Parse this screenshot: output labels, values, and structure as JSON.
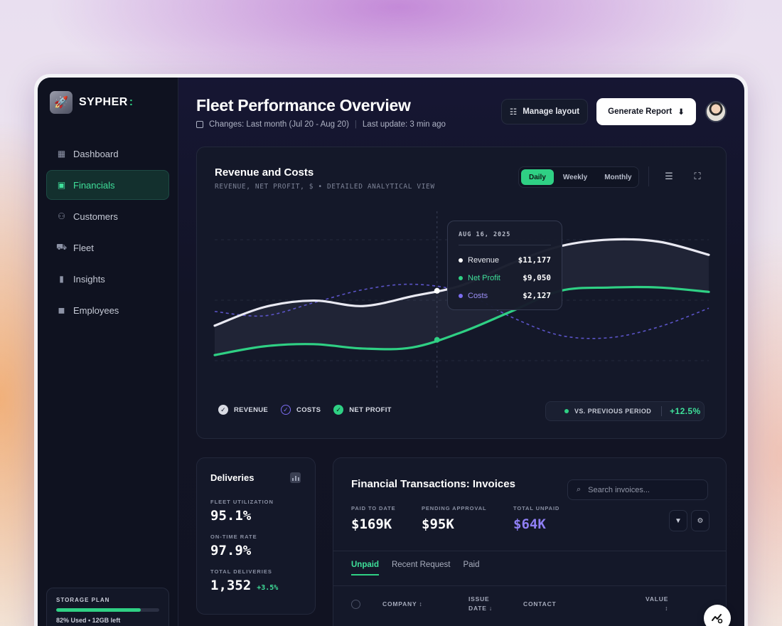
{
  "brand": {
    "name": "SYPHER",
    "suffix": ":"
  },
  "sidebar": {
    "items": [
      {
        "label": "Dashboard",
        "icon": "grid-icon",
        "active": false
      },
      {
        "label": "Financials",
        "icon": "wallet-icon",
        "active": true
      },
      {
        "label": "Customers",
        "icon": "users-icon",
        "active": false
      },
      {
        "label": "Fleet",
        "icon": "truck-icon",
        "active": false
      },
      {
        "label": "Insights",
        "icon": "bar-chart-icon",
        "active": false
      },
      {
        "label": "Employees",
        "icon": "briefcase-icon",
        "active": false
      }
    ],
    "storage": {
      "title": "STORAGE PLAN",
      "used_fraction": 0.82,
      "text": "82% Used • 12GB left"
    }
  },
  "header": {
    "title": "Fleet Performance Overview",
    "changes": "Changes: Last month (Jul 20 - Aug 20)",
    "last_update": "Last update: 3 min ago",
    "manage_layout": "Manage layout",
    "generate_report": "Generate Report"
  },
  "chart": {
    "title": "Revenue and Costs",
    "subtitle": "REVENUE, NET PROFIT, $ • DETAILED ANALYTICAL VIEW",
    "periods": [
      "Daily",
      "Weekly",
      "Monthly"
    ],
    "active_period": "Daily",
    "tooltip": {
      "date": "AUG 16, 2025",
      "rows": [
        {
          "label": "Revenue",
          "value": "$11,177",
          "color": "#ffffff"
        },
        {
          "label": "Net Profit",
          "value": "$9,050",
          "color": "#2fd084"
        },
        {
          "label": "Costs",
          "value": "$2,127",
          "color": "#7b6cf0"
        }
      ]
    },
    "legend": [
      "REVENUE",
      "COSTS",
      "NET PROFIT"
    ],
    "comparison": {
      "label": "VS. PREVIOUS PERIOD",
      "value": "+12.5%"
    }
  },
  "chart_data": {
    "type": "line",
    "title": "Revenue and Costs",
    "subtitle": "REVENUE, NET PROFIT, $ • DETAILED ANALYTICAL VIEW",
    "x": [
      0,
      1,
      2,
      3,
      4,
      5,
      6,
      7,
      8,
      9,
      10
    ],
    "series": [
      {
        "name": "REVENUE",
        "color": "#e9e9f2",
        "values": [
          7.5,
          9.2,
          9.8,
          9.3,
          10.2,
          11.2,
          13.2,
          14.8,
          15.4,
          15.2,
          14.0
        ]
      },
      {
        "name": "COSTS",
        "color": "#5b54c8",
        "values": [
          8.8,
          8.4,
          9.6,
          10.8,
          11.3,
          10.6,
          8.3,
          6.6,
          6.4,
          7.4,
          9.1
        ]
      },
      {
        "name": "NET PROFIT",
        "color": "#2fd084",
        "values": [
          4.8,
          5.6,
          5.8,
          5.4,
          5.5,
          6.9,
          8.8,
          10.7,
          11.0,
          11.0,
          10.6
        ]
      }
    ],
    "highlight_x": 4.5,
    "grid": true,
    "legend": "bottom-left"
  },
  "deliveries": {
    "title": "Deliveries",
    "metrics": [
      {
        "label": "FLEET UTILIZATION",
        "value": "95.1%"
      },
      {
        "label": "ON-TIME RATE",
        "value": "97.9%"
      },
      {
        "label": "TOTAL DELIVERIES",
        "value": "1,352",
        "delta": "+3.5%"
      }
    ]
  },
  "invoices": {
    "title": "Financial Transactions: Invoices",
    "search_placeholder": "Search invoices...",
    "stats": [
      {
        "label": "PAID TO DATE",
        "value": "$169K",
        "color": "#ffffff"
      },
      {
        "label": "PENDING APPROVAL",
        "value": "$95K",
        "color": "#ffffff"
      },
      {
        "label": "TOTAL UNPAID",
        "value": "$64K",
        "color": "#8f7ff5"
      }
    ],
    "tabs": [
      "Unpaid",
      "Recent Request",
      "Paid"
    ],
    "columns": [
      {
        "line1": "COMPANY",
        "line2": "↕"
      },
      {
        "line1": "ISSUE",
        "line2": "DATE ↓"
      },
      {
        "line1": "CONTACT",
        "line2": ""
      },
      {
        "line1": "VALUE",
        "line2": "↕"
      }
    ]
  }
}
